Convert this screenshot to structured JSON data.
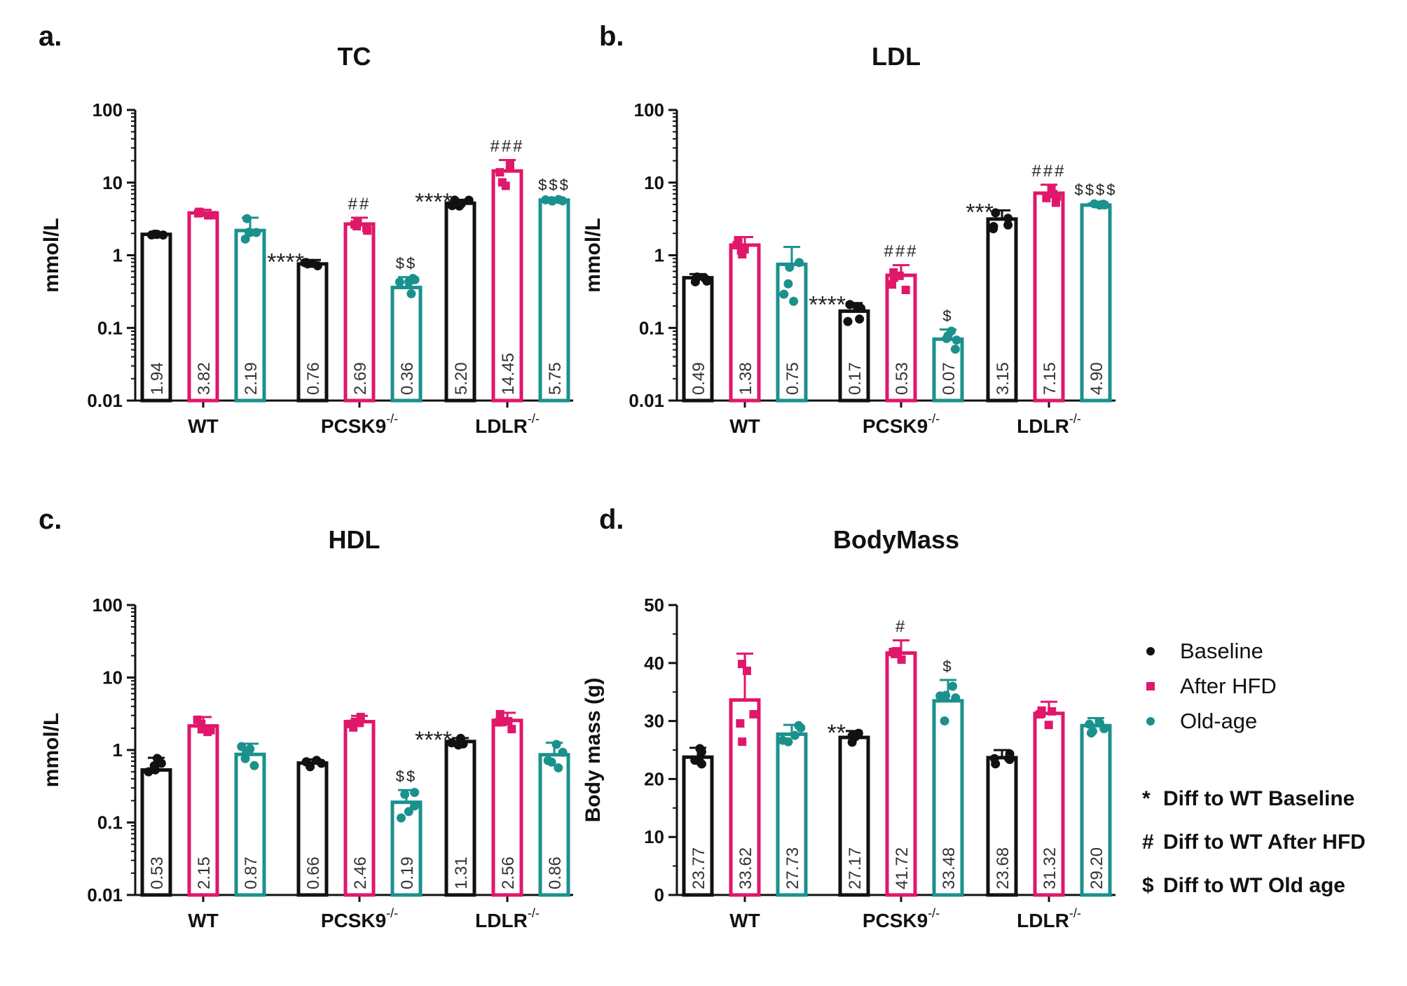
{
  "colors": {
    "baseline": "#111111",
    "hfd": "#e0176b",
    "old": "#1b918d"
  },
  "legend": {
    "items": [
      {
        "label": "Baseline",
        "color": "#111111",
        "shape": "circle"
      },
      {
        "label": "After HFD",
        "color": "#e0176b",
        "shape": "square"
      },
      {
        "label": "Old-age",
        "color": "#1b918d",
        "shape": "circle"
      }
    ],
    "notes": [
      {
        "symbol": "*",
        "text": "Diff to WT Baseline"
      },
      {
        "symbol": "#",
        "text": "Diff to WT After HFD"
      },
      {
        "symbol": "$",
        "text": "Diff to WT Old age"
      }
    ]
  },
  "chart_data": [
    {
      "panel": "a.",
      "type": "bar",
      "title": "TC",
      "ylabel": "mmol/L",
      "scale": "log",
      "ylim": [
        0.01,
        100
      ],
      "yticks": [
        "0.01",
        "0.1",
        "1",
        "10",
        "100"
      ],
      "categories": [
        "WT",
        "PCSK9",
        "LDLR"
      ],
      "cat_sup": [
        "",
        "-/-",
        "-/-"
      ],
      "series": [
        {
          "name": "Baseline",
          "values": [
            1.94,
            0.76,
            5.2
          ],
          "labels": [
            "1.94",
            "0.76",
            "5.20"
          ],
          "sd": [
            0.05,
            0.1,
            0.6
          ],
          "sig": [
            "",
            "****",
            "****"
          ]
        },
        {
          "name": "After HFD",
          "values": [
            3.82,
            2.69,
            14.45
          ],
          "labels": [
            "3.82",
            "2.69",
            "14.45"
          ],
          "sd": [
            0.4,
            0.6,
            6
          ],
          "sig": [
            "",
            "##",
            "###"
          ]
        },
        {
          "name": "Old-age",
          "values": [
            2.19,
            0.36,
            5.75
          ],
          "labels": [
            "2.19",
            "0.36",
            "5.75"
          ],
          "sd": [
            1.1,
            0.14,
            0.3
          ],
          "sig": [
            "",
            "$$",
            "$$$"
          ]
        }
      ]
    },
    {
      "panel": "b.",
      "type": "bar",
      "title": "LDL",
      "ylabel": "mmol/L",
      "scale": "log",
      "ylim": [
        0.01,
        100
      ],
      "yticks": [
        "0.01",
        "0.1",
        "1",
        "10",
        "100"
      ],
      "categories": [
        "WT",
        "PCSK9",
        "LDLR"
      ],
      "cat_sup": [
        "",
        "-/-",
        "-/-"
      ],
      "series": [
        {
          "name": "Baseline",
          "values": [
            0.49,
            0.17,
            3.15
          ],
          "labels": [
            "0.49",
            "0.17",
            "3.15"
          ],
          "sd": [
            0.06,
            0.05,
            1.0
          ],
          "sig": [
            "",
            "****",
            "***"
          ]
        },
        {
          "name": "After HFD",
          "values": [
            1.38,
            0.53,
            7.15
          ],
          "labels": [
            "1.38",
            "0.53",
            "7.15"
          ],
          "sd": [
            0.4,
            0.2,
            2.2
          ],
          "sig": [
            "",
            "###",
            "###"
          ]
        },
        {
          "name": "Old-age",
          "values": [
            0.75,
            0.07,
            4.9
          ],
          "labels": [
            "0.75",
            "0.07",
            "4.90"
          ],
          "sd": [
            0.55,
            0.025,
            0.25
          ],
          "sig": [
            "",
            "$",
            "$$$$"
          ]
        }
      ]
    },
    {
      "panel": "c.",
      "type": "bar",
      "title": "HDL",
      "ylabel": "mmol/L",
      "scale": "log",
      "ylim": [
        0.01,
        100
      ],
      "yticks": [
        "0.01",
        "0.1",
        "1",
        "10",
        "100"
      ],
      "categories": [
        "WT",
        "PCSK9",
        "LDLR"
      ],
      "cat_sup": [
        "",
        "-/-",
        "-/-"
      ],
      "series": [
        {
          "name": "Baseline",
          "values": [
            0.53,
            0.66,
            1.31
          ],
          "labels": [
            "0.53",
            "0.66",
            "1.31"
          ],
          "sd": [
            0.25,
            0.08,
            0.15
          ],
          "sig": [
            "",
            "",
            "****"
          ]
        },
        {
          "name": "After HFD",
          "values": [
            2.15,
            2.46,
            2.56
          ],
          "labels": [
            "2.15",
            "2.46",
            "2.56"
          ],
          "sd": [
            0.7,
            0.5,
            0.7
          ],
          "sig": [
            "",
            "",
            ""
          ]
        },
        {
          "name": "Old-age",
          "values": [
            0.87,
            0.19,
            0.86
          ],
          "labels": [
            "0.87",
            "0.19",
            "0.86"
          ],
          "sd": [
            0.35,
            0.09,
            0.4
          ],
          "sig": [
            "",
            "$$",
            ""
          ]
        }
      ]
    },
    {
      "panel": "d.",
      "type": "bar",
      "title": "BodyMass",
      "ylabel": "Body mass (g)",
      "scale": "linear",
      "ylim": [
        0,
        50
      ],
      "yticks": [
        "0",
        "10",
        "20",
        "30",
        "40",
        "50"
      ],
      "categories": [
        "WT",
        "PCSK9",
        "LDLR"
      ],
      "cat_sup": [
        "",
        "-/-",
        "-/-"
      ],
      "series": [
        {
          "name": "Baseline",
          "values": [
            23.77,
            27.17,
            23.68
          ],
          "labels": [
            "23.77",
            "27.17",
            "23.68"
          ],
          "sd": [
            1.6,
            1.1,
            1.3
          ],
          "sig": [
            "",
            "**",
            ""
          ]
        },
        {
          "name": "After HFD",
          "values": [
            33.62,
            41.72,
            31.32
          ],
          "labels": [
            "33.62",
            "41.72",
            "31.32"
          ],
          "sd": [
            8,
            2.2,
            2.0
          ],
          "sig": [
            "",
            "#",
            ""
          ]
        },
        {
          "name": "Old-age",
          "values": [
            27.73,
            33.48,
            29.2
          ],
          "labels": [
            "27.73",
            "33.48",
            "29.20"
          ],
          "sd": [
            1.6,
            3.6,
            1.3
          ],
          "sig": [
            "",
            "$",
            ""
          ]
        }
      ]
    }
  ]
}
